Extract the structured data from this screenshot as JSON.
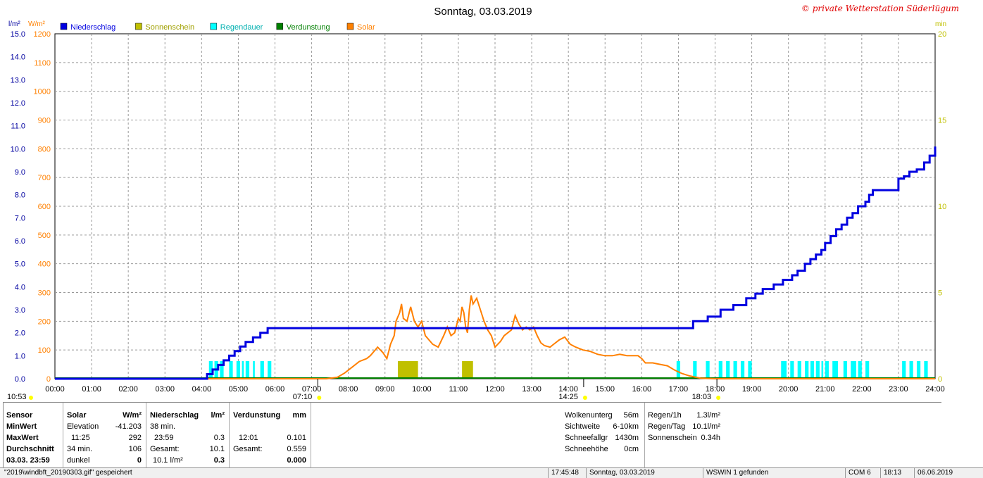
{
  "chart_data": {
    "type": "line",
    "title": "Sonntag, 03.03.2019",
    "watermark": "© private Wetterstation Süderlügum",
    "legend": [
      {
        "name": "Niederschlag",
        "color": "#0000e0"
      },
      {
        "name": "Sonnenschein",
        "color": "#c0c000"
      },
      {
        "name": "Regendauer",
        "color": "#00ffff"
      },
      {
        "name": "Verdunstung",
        "color": "#008000"
      },
      {
        "name": "Solar",
        "color": "#ff8000"
      }
    ],
    "axes": {
      "left1": {
        "unit": "l/m²",
        "min": 0,
        "max": 15,
        "ticks": [
          "0.0",
          "1.0",
          "2.0",
          "3.0",
          "4.0",
          "5.0",
          "6.0",
          "7.0",
          "8.0",
          "9.0",
          "10.0",
          "11.0",
          "12.0",
          "13.0",
          "14.0",
          "15.0"
        ],
        "color": "#0000a0"
      },
      "left2": {
        "unit": "W/m²",
        "min": 0,
        "max": 1200,
        "ticks": [
          "0",
          "100",
          "200",
          "300",
          "400",
          "500",
          "600",
          "700",
          "800",
          "900",
          "1000",
          "1100",
          "1200"
        ],
        "color": "#ff8000"
      },
      "right": {
        "unit": "min",
        "min": 0,
        "max": 20,
        "ticks": [
          "0",
          "5",
          "10",
          "15",
          "20"
        ],
        "color": "#c0c000"
      },
      "x": {
        "min": 0,
        "max": 24,
        "ticks": [
          "00:00",
          "01:00",
          "02:00",
          "03:00",
          "04:00",
          "05:00",
          "06:00",
          "07:00",
          "08:00",
          "09:00",
          "10:00",
          "11:00",
          "12:00",
          "13:00",
          "14:00",
          "15:00",
          "16:00",
          "17:00",
          "18:00",
          "19:00",
          "20:00",
          "21:00",
          "22:00",
          "23:00",
          "24:00"
        ]
      }
    },
    "grid": true,
    "markers": [
      {
        "label": "10:53",
        "x": -0.3
      },
      {
        "label": "07:10",
        "x": 7.167
      },
      {
        "label": "14:25",
        "x": 14.417
      },
      {
        "label": "18:03",
        "x": 18.05
      }
    ],
    "niederschlag": {
      "x": [
        0,
        4.15,
        4.3,
        4.45,
        4.6,
        4.75,
        4.9,
        5.05,
        5.2,
        5.4,
        5.6,
        5.8,
        6.0,
        16.95,
        17.4,
        17.8,
        18.15,
        18.5,
        18.85,
        19.1,
        19.3,
        19.6,
        19.85,
        19.95,
        20.1,
        20.25,
        20.45,
        20.6,
        20.75,
        20.9,
        21.0,
        21.15,
        21.3,
        21.45,
        21.6,
        21.75,
        21.9,
        22.1,
        22.2,
        22.3,
        23.0,
        23.15,
        23.3,
        23.5,
        23.7,
        23.85,
        24
      ],
      "y": [
        0,
        0.2,
        0.4,
        0.6,
        0.8,
        1.0,
        1.2,
        1.4,
        1.6,
        1.8,
        2.0,
        2.2,
        2.2,
        2.2,
        2.5,
        2.7,
        3.0,
        3.2,
        3.5,
        3.7,
        3.9,
        4.1,
        4.3,
        4.3,
        4.5,
        4.7,
        5.0,
        5.2,
        5.4,
        5.6,
        5.9,
        6.2,
        6.5,
        6.7,
        7.0,
        7.2,
        7.5,
        7.7,
        8.0,
        8.2,
        8.7,
        8.8,
        9.0,
        9.1,
        9.4,
        9.7,
        10.1
      ]
    },
    "solar": {
      "x": [
        0,
        7.4,
        7.7,
        7.9,
        8.1,
        8.3,
        8.5,
        8.6,
        8.8,
        8.95,
        9.05,
        9.15,
        9.25,
        9.3,
        9.4,
        9.45,
        9.5,
        9.6,
        9.7,
        9.8,
        9.9,
        10.0,
        10.1,
        10.3,
        10.45,
        10.6,
        10.7,
        10.8,
        10.9,
        11.0,
        11.05,
        11.1,
        11.15,
        11.2,
        11.25,
        11.3,
        11.35,
        11.4,
        11.5,
        11.6,
        11.7,
        11.8,
        11.9,
        12.0,
        12.15,
        12.25,
        12.35,
        12.45,
        12.55,
        12.65,
        12.75,
        12.85,
        12.95,
        13.05,
        13.15,
        13.25,
        13.35,
        13.5,
        13.6,
        13.75,
        13.9,
        14.05,
        14.2,
        14.4,
        14.6,
        14.8,
        15.0,
        15.2,
        15.4,
        15.6,
        15.8,
        15.9,
        16.0,
        16.1,
        16.3,
        16.5,
        16.7,
        16.9,
        17.1,
        17.3,
        17.6,
        18.0,
        24
      ],
      "y": [
        0,
        0,
        5,
        20,
        40,
        60,
        70,
        80,
        110,
        90,
        70,
        120,
        150,
        200,
        230,
        260,
        210,
        200,
        250,
        200,
        180,
        200,
        150,
        120,
        110,
        150,
        180,
        150,
        160,
        210,
        200,
        250,
        230,
        180,
        160,
        240,
        290,
        260,
        280,
        240,
        200,
        170,
        150,
        110,
        130,
        150,
        160,
        170,
        220,
        190,
        170,
        180,
        170,
        180,
        150,
        125,
        115,
        110,
        120,
        135,
        145,
        120,
        110,
        100,
        95,
        85,
        80,
        80,
        85,
        80,
        80,
        80,
        70,
        55,
        55,
        50,
        45,
        30,
        18,
        10,
        2,
        0,
        0
      ]
    },
    "sonnenschein": [
      [
        9.35,
        9.9
      ],
      [
        11.1,
        11.4
      ]
    ],
    "regendauer": [
      [
        4.2,
        4.3
      ],
      [
        4.35,
        4.45
      ],
      [
        4.5,
        4.6
      ],
      [
        4.75,
        4.85
      ],
      [
        4.95,
        5.05
      ],
      [
        5.1,
        5.15
      ],
      [
        5.2,
        5.3
      ],
      [
        5.4,
        5.45
      ],
      [
        5.6,
        5.7
      ],
      [
        5.8,
        5.9
      ],
      [
        16.95,
        17.05
      ],
      [
        17.4,
        17.5
      ],
      [
        17.75,
        17.85
      ],
      [
        18.1,
        18.2
      ],
      [
        18.3,
        18.4
      ],
      [
        18.5,
        18.6
      ],
      [
        18.7,
        18.8
      ],
      [
        18.9,
        19.0
      ],
      [
        19.8,
        19.95
      ],
      [
        20.05,
        20.15
      ],
      [
        20.25,
        20.35
      ],
      [
        20.45,
        20.55
      ],
      [
        20.6,
        20.7
      ],
      [
        20.75,
        20.85
      ],
      [
        20.9,
        20.95
      ],
      [
        21.0,
        21.1
      ],
      [
        21.2,
        21.35
      ],
      [
        21.5,
        21.6
      ],
      [
        21.7,
        21.85
      ],
      [
        21.9,
        22.0
      ],
      [
        22.1,
        22.2
      ],
      [
        23.1,
        23.2
      ],
      [
        23.3,
        23.4
      ],
      [
        23.5,
        23.6
      ],
      [
        23.7,
        23.8
      ]
    ]
  },
  "stats": {
    "sensor_col": {
      "header": "Sensor",
      "min": "MinWert",
      "max": "MaxWert",
      "avg": "Durchschnitt",
      "date": "03.03. 23:59"
    },
    "solar": {
      "header": "Solar",
      "unit": "W/m²",
      "min_label": "Elevation",
      "min_val": "-41.203",
      "max_time": "11:25",
      "max_val": "292",
      "avg_label": "34 min.",
      "avg_val": "106",
      "dark_label": "dunkel",
      "dark_val": "0"
    },
    "niederschlag": {
      "header": "Niederschlag",
      "unit": "l/m²",
      "min_label": "38 min.",
      "max_time": "23:59",
      "max_val": "0.3",
      "avg_label": "Gesamt:",
      "avg_val": "10.1",
      "last_label": "10.1 l/m²",
      "last_val": "0.3"
    },
    "verdunstung": {
      "header": "Verdunstung",
      "unit": "mm",
      "max_time": "12:01",
      "max_val": "0.101",
      "avg_label": "Gesamt:",
      "avg_val": "0.559",
      "last_val": "0.000"
    },
    "wolken": {
      "r1_label": "Wolkenunterg",
      "r1_val": "56m",
      "r2_label": "Sichtweite",
      "r2_val": "6-10km",
      "r3_label": "Schneefallgr",
      "r3_val": "1430m",
      "r4_label": "Schneehöhe",
      "r4_val": "0cm"
    },
    "regen": {
      "r1_label": "Regen/1h",
      "r1_val": "1.3l/m²",
      "r2_label": "Regen/Tag",
      "r2_val": "10.1l/m²",
      "r3_label": "Sonnenschein",
      "r3_val": "0.34h"
    }
  },
  "statusbar": {
    "file": "\"2019\\windbft_20190303.gif\" gespeichert",
    "time": "17:45:48",
    "date": "Sonntag, 03.03.2019",
    "found": "WSWIN 1 gefunden",
    "com": "COM 6",
    "clock": "18:13",
    "today": "06.06.2019"
  }
}
